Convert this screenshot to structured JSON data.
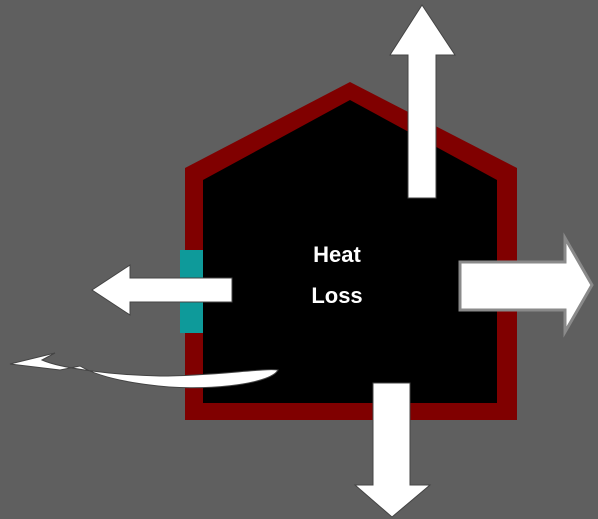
{
  "label": {
    "line1": "Heat",
    "line2": "Loss"
  }
}
